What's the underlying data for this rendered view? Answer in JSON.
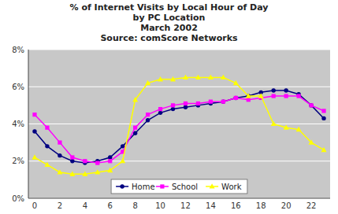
{
  "chart_data": {
    "type": "line",
    "title": "% of Internet Visits by Local Hour of Day",
    "subtitle": "by PC Location",
    "annotations": [
      "March 2002",
      "Source: comScore Networks"
    ],
    "x": [
      0,
      1,
      2,
      3,
      4,
      5,
      6,
      7,
      8,
      9,
      10,
      11,
      12,
      13,
      14,
      15,
      16,
      17,
      18,
      19,
      20,
      21,
      22,
      23
    ],
    "series": [
      {
        "name": "Home",
        "color": "#000080",
        "marker": "circle",
        "values": [
          3.6,
          2.8,
          2.3,
          2.0,
          1.9,
          2.0,
          2.2,
          2.8,
          3.5,
          4.2,
          4.6,
          4.8,
          4.9,
          5.0,
          5.1,
          5.2,
          5.4,
          5.5,
          5.7,
          5.8,
          5.8,
          5.6,
          5.0,
          4.3
        ]
      },
      {
        "name": "School",
        "color": "#FF00FF",
        "marker": "square",
        "values": [
          4.5,
          3.8,
          3.0,
          2.2,
          2.0,
          1.9,
          2.0,
          2.5,
          3.8,
          4.5,
          4.8,
          5.0,
          5.1,
          5.1,
          5.2,
          5.2,
          5.4,
          5.3,
          5.4,
          5.5,
          5.5,
          5.5,
          5.0,
          4.7
        ]
      },
      {
        "name": "Work",
        "color": "#FFFF00",
        "marker": "triangle",
        "values": [
          2.2,
          1.8,
          1.4,
          1.3,
          1.3,
          1.4,
          1.5,
          2.0,
          5.3,
          6.2,
          6.4,
          6.4,
          6.5,
          6.5,
          6.5,
          6.5,
          6.2,
          5.5,
          5.5,
          4.0,
          3.8,
          3.7,
          3.0,
          2.6
        ]
      }
    ],
    "xlim": [
      -0.5,
      23.5
    ],
    "xticks": [
      0,
      2,
      4,
      6,
      8,
      10,
      12,
      14,
      16,
      18,
      20,
      22
    ],
    "ylim": [
      0,
      8
    ],
    "yticks": [
      {
        "value": 0,
        "label": "0%"
      },
      {
        "value": 2,
        "label": "2%"
      },
      {
        "value": 4,
        "label": "4%"
      },
      {
        "value": 6,
        "label": "6%"
      },
      {
        "value": 8,
        "label": "8%"
      }
    ],
    "grid": true,
    "legend": "lower center"
  }
}
